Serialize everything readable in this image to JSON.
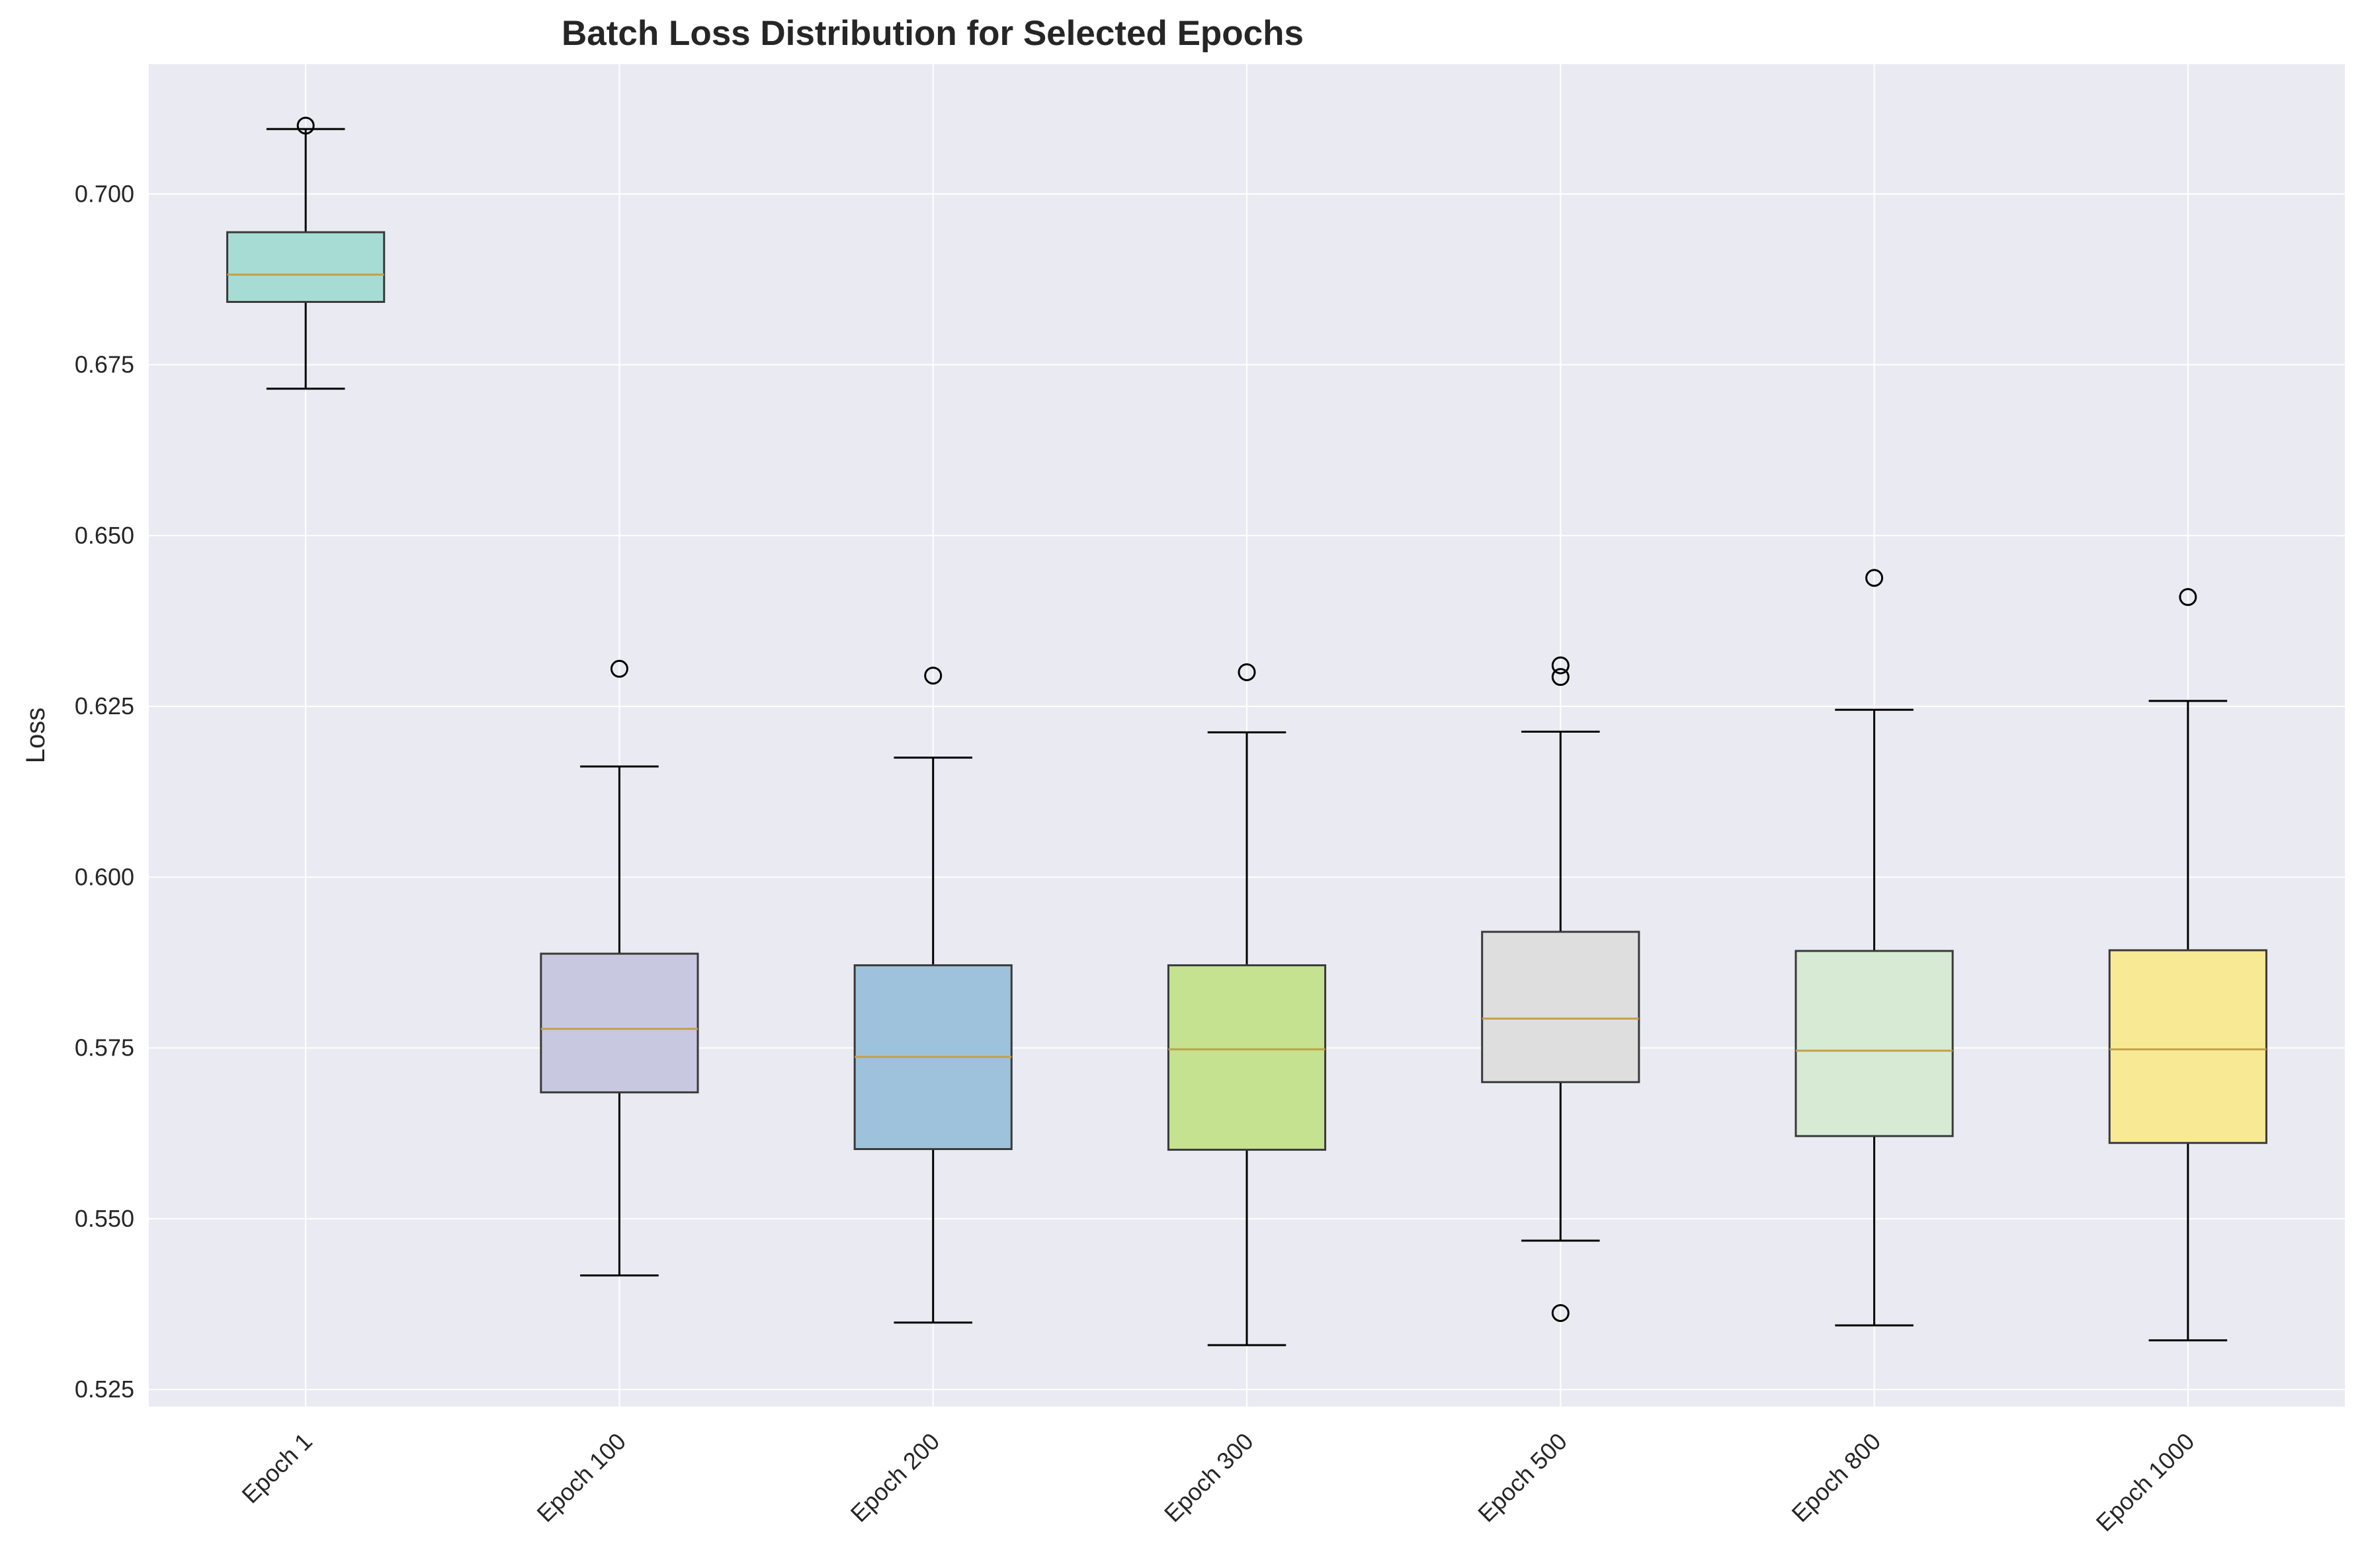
{
  "chart_data": {
    "type": "box",
    "title": "Batch Loss Distribution for Selected Epochs",
    "xlabel": "",
    "ylabel": "Loss",
    "ylim": [
      0.5225,
      0.719
    ],
    "yticks": [
      0.525,
      0.55,
      0.575,
      0.6,
      0.625,
      0.65,
      0.675,
      0.7
    ],
    "ytick_labels": [
      "0.525",
      "0.550",
      "0.575",
      "0.600",
      "0.625",
      "0.650",
      "0.675",
      "0.700"
    ],
    "grid": true,
    "categories": [
      "Epoch 1",
      "Epoch 100",
      "Epoch 200",
      "Epoch 300",
      "Epoch 500",
      "Epoch 800",
      "Epoch 1000"
    ],
    "boxes": [
      {
        "label": "Epoch 1",
        "whisker_low": 0.6715,
        "q1": 0.6842,
        "median": 0.6882,
        "q3": 0.6944,
        "whisker_high": 0.7095,
        "outliers": [
          0.71
        ],
        "color": "#a6dcd3"
      },
      {
        "label": "Epoch 100",
        "whisker_low": 0.5417,
        "q1": 0.5685,
        "median": 0.5778,
        "q3": 0.5888,
        "whisker_high": 0.6162,
        "outliers": [
          0.6305
        ],
        "color": "#c9c8e1"
      },
      {
        "label": "Epoch 200",
        "whisker_low": 0.5348,
        "q1": 0.5602,
        "median": 0.5737,
        "q3": 0.5871,
        "whisker_high": 0.6175,
        "outliers": [
          0.6295
        ],
        "color": "#9ec2db"
      },
      {
        "label": "Epoch 300",
        "whisker_low": 0.5315,
        "q1": 0.5601,
        "median": 0.5748,
        "q3": 0.5871,
        "whisker_high": 0.6212,
        "outliers": [
          0.63
        ],
        "color": "#c4e28f"
      },
      {
        "label": "Epoch 500",
        "whisker_low": 0.5468,
        "q1": 0.57,
        "median": 0.5793,
        "q3": 0.592,
        "whisker_high": 0.6213,
        "outliers": [
          0.631,
          0.6293,
          0.5362
        ],
        "color": "#dedede"
      },
      {
        "label": "Epoch 800",
        "whisker_low": 0.5344,
        "q1": 0.5621,
        "median": 0.5746,
        "q3": 0.5892,
        "whisker_high": 0.6245,
        "outliers": [
          0.6438
        ],
        "color": "#d6ead4"
      },
      {
        "label": "Epoch 1000",
        "whisker_low": 0.5322,
        "q1": 0.5611,
        "median": 0.5748,
        "q3": 0.5893,
        "whisker_high": 0.6258,
        "outliers": [
          0.641
        ],
        "color": "#f8ea95"
      }
    ],
    "colors": {
      "axes_background": "#eaeaf2",
      "grid": "#ffffff",
      "median": "#c2a04a",
      "box_edge": "#3a3a3a",
      "whisker": "#000000"
    }
  }
}
